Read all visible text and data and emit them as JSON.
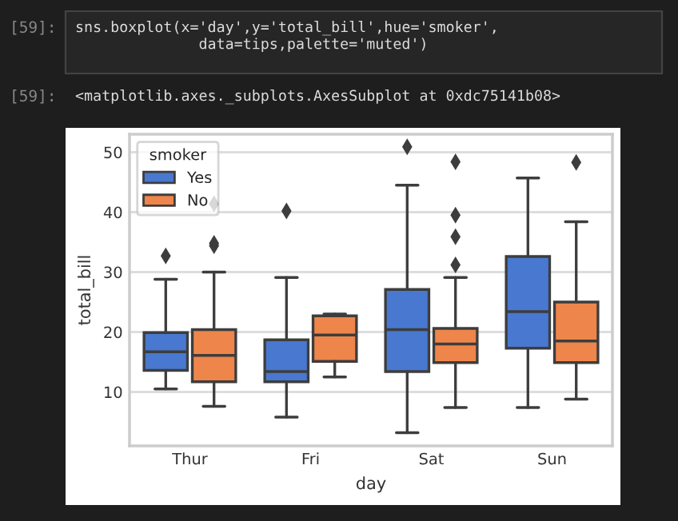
{
  "chart_data": {
    "type": "box",
    "xlabel": "day",
    "ylabel": "total_bill",
    "legend_title": "smoker",
    "legend": "top left",
    "grid": "y",
    "categories": [
      "Thur",
      "Fri",
      "Sat",
      "Sun"
    ],
    "ylim": [
      1,
      53
    ],
    "yticks": [
      10,
      20,
      30,
      40,
      50
    ],
    "series": [
      {
        "name": "Yes",
        "color": "#4878d0",
        "boxes": [
          {
            "low": 10.5,
            "q1": 13.6,
            "median": 16.7,
            "q3": 19.9,
            "high": 28.8,
            "outliers": [
              32.7
            ]
          },
          {
            "low": 5.8,
            "q1": 11.7,
            "median": 13.4,
            "q3": 18.7,
            "high": 29.1,
            "outliers": [
              40.2
            ]
          },
          {
            "low": 3.2,
            "q1": 13.4,
            "median": 20.4,
            "q3": 27.1,
            "high": 44.5,
            "outliers": [
              50.9
            ]
          },
          {
            "low": 7.4,
            "q1": 17.3,
            "median": 23.4,
            "q3": 32.6,
            "high": 45.7
          }
        ]
      },
      {
        "name": "No",
        "color": "#ee854a",
        "boxes": [
          {
            "low": 7.6,
            "q1": 11.7,
            "median": 16.1,
            "q3": 20.4,
            "high": 30.0,
            "outliers": [
              34.4,
              34.8,
              41.4
            ]
          },
          {
            "low": 12.5,
            "q1": 15.1,
            "median": 19.5,
            "q3": 22.7,
            "high": 23.0
          },
          {
            "low": 7.4,
            "q1": 14.9,
            "median": 18.0,
            "q3": 20.6,
            "high": 29.1,
            "outliers": [
              31.2,
              35.9,
              39.5,
              48.4
            ]
          },
          {
            "low": 8.8,
            "q1": 14.9,
            "median": 18.5,
            "q3": 25.0,
            "high": 38.4,
            "outliers": [
              48.3
            ]
          }
        ]
      }
    ],
    "annotations": [
      "[59]:",
      "sns.boxplot(x='day',y='total_bill',hue='smoker',\n              data=tips,palette='muted')",
      "[59]:",
      "<matplotlib.axes._subplots.AxesSubplot at 0xdc75141b08>"
    ]
  }
}
